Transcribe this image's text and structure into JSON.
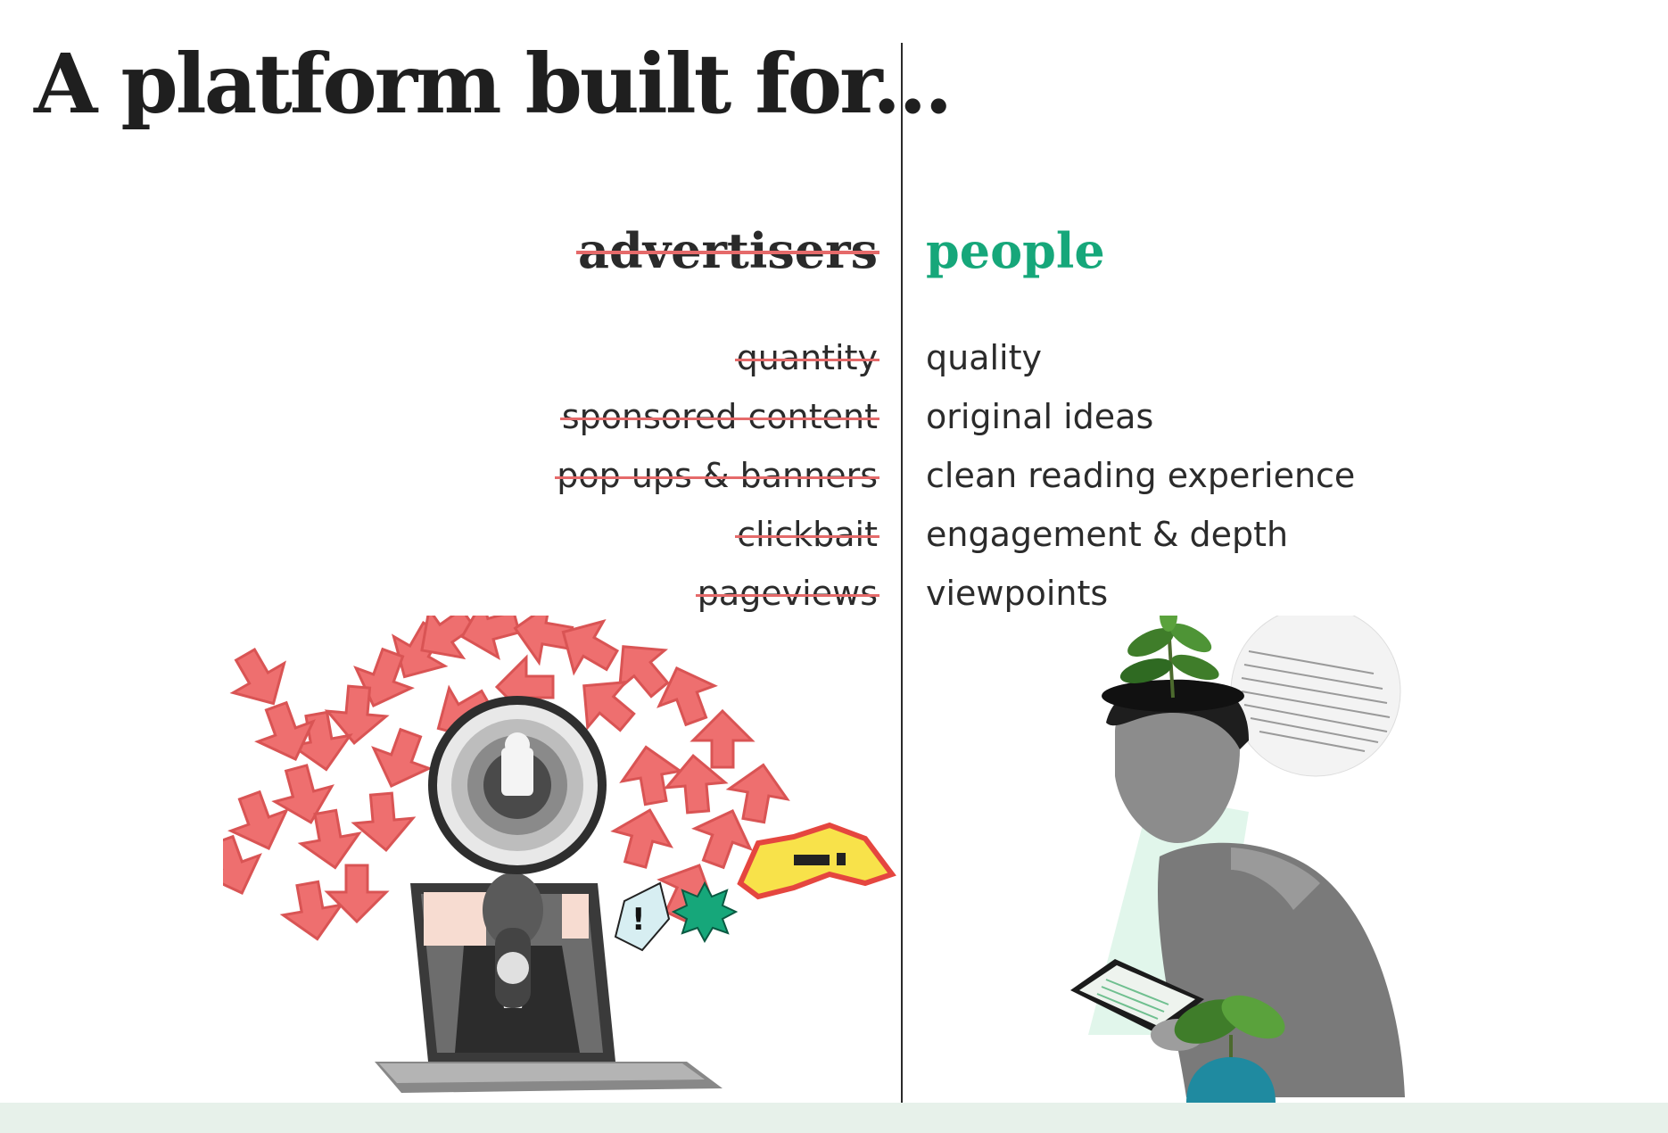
{
  "headline": "A platform built for...",
  "left": {
    "title": "advertisers",
    "items": [
      "quantity",
      "sponsored content",
      "pop ups & banners",
      "clickbait",
      "pageviews"
    ]
  },
  "right": {
    "title": "people",
    "items": [
      "quality",
      "original ideas",
      "clean reading experience",
      "engagement & depth",
      "viewpoints"
    ]
  },
  "colors": {
    "accent": "#16a77a",
    "strike": "#e56a6a",
    "arrows": "#ee6f6f",
    "band": "#e7f1ea",
    "pot": "#1f8aa0"
  }
}
